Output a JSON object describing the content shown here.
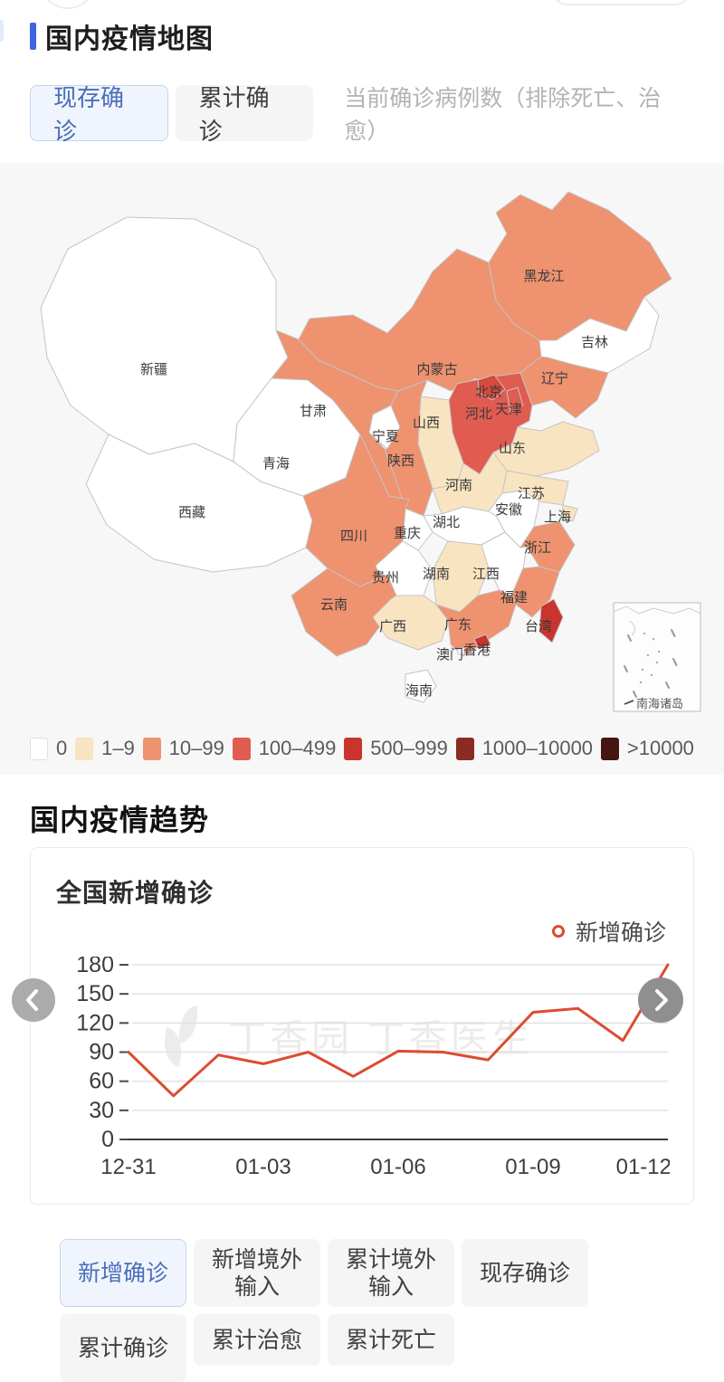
{
  "page": {
    "map_section": {
      "title": "国内疫情地图",
      "tabs": [
        {
          "label": "现存确诊",
          "selected": true
        },
        {
          "label": "累计确诊",
          "selected": false
        }
      ],
      "description": "当前确诊病例数（排除死亡、治愈）",
      "legend": [
        {
          "label": "0",
          "color": "#ffffff"
        },
        {
          "label": "1–9",
          "color": "#f9e4c1"
        },
        {
          "label": "10–99",
          "color": "#ee9270"
        },
        {
          "label": "100–499",
          "color": "#e05c50"
        },
        {
          "label": "500–999",
          "color": "#c9342c"
        },
        {
          "label": "1000–10000",
          "color": "#8c2a24"
        },
        {
          "label": ">10000",
          "color": "#441612"
        }
      ],
      "inset_label": "南海诸岛",
      "provinces": [
        {
          "id": "xinjiang",
          "name": "新疆",
          "level": "0"
        },
        {
          "id": "xizang",
          "name": "西藏",
          "level": "0"
        },
        {
          "id": "qinghai",
          "name": "青海",
          "level": "0"
        },
        {
          "id": "gansu",
          "name": "甘肃",
          "level": "10–99"
        },
        {
          "id": "neimenggu",
          "name": "内蒙古",
          "level": "10–99"
        },
        {
          "id": "heilongjiang",
          "name": "黑龙江",
          "level": "10–99"
        },
        {
          "id": "jilin",
          "name": "吉林",
          "level": "0"
        },
        {
          "id": "liaoning",
          "name": "辽宁",
          "level": "10–99"
        },
        {
          "id": "hebei",
          "name": "河北",
          "level": "100–499"
        },
        {
          "id": "beijing",
          "name": "北京",
          "level": "100–499",
          "color": "#d6493f"
        },
        {
          "id": "tianjin",
          "name": "天津",
          "level": "100–499"
        },
        {
          "id": "ningxia",
          "name": "宁夏",
          "level": "0"
        },
        {
          "id": "shanxi",
          "name": "山西",
          "level": "1–9"
        },
        {
          "id": "shandong",
          "name": "山东",
          "level": "1–9"
        },
        {
          "id": "shaanxi",
          "name": "陕西",
          "level": "10–99"
        },
        {
          "id": "henan",
          "name": "河南",
          "level": "1–9"
        },
        {
          "id": "jiangsu",
          "name": "江苏",
          "level": "1–9"
        },
        {
          "id": "anhui",
          "name": "安徽",
          "level": "0"
        },
        {
          "id": "shanghai",
          "name": "上海",
          "level": "1–9"
        },
        {
          "id": "hubei",
          "name": "湖北",
          "level": "0"
        },
        {
          "id": "chongqing",
          "name": "重庆",
          "level": "0"
        },
        {
          "id": "sichuan",
          "name": "四川",
          "level": "10–99"
        },
        {
          "id": "zhejiang",
          "name": "浙江",
          "level": "10–99"
        },
        {
          "id": "guizhou",
          "name": "贵州",
          "level": "0"
        },
        {
          "id": "hunan",
          "name": "湖南",
          "level": "1–9"
        },
        {
          "id": "jiangxi",
          "name": "江西",
          "level": "0"
        },
        {
          "id": "fujian",
          "name": "福建",
          "level": "10–99"
        },
        {
          "id": "yunnan",
          "name": "云南",
          "level": "10–99"
        },
        {
          "id": "guangxi",
          "name": "广西",
          "level": "1–9"
        },
        {
          "id": "guangdong",
          "name": "广东",
          "level": "10–99"
        },
        {
          "id": "aomen",
          "name": "澳门",
          "level": "0"
        },
        {
          "id": "xianggang",
          "name": "香港",
          "level": "500–999"
        },
        {
          "id": "taiwan",
          "name": "台湾",
          "level": "500–999"
        },
        {
          "id": "hainan",
          "name": "海南",
          "level": "0"
        }
      ]
    },
    "trend_section": {
      "title": "国内疫情趋势",
      "tabs": [
        {
          "label": "新增确诊",
          "selected": true
        },
        {
          "label": "新增境外\n输入",
          "selected": false
        },
        {
          "label": "累计境外\n输入",
          "selected": false
        },
        {
          "label": "现存确诊",
          "selected": false
        },
        {
          "label": "累计确诊",
          "selected": false
        },
        {
          "label": "累计治愈",
          "selected": false
        },
        {
          "label": "累计死亡",
          "selected": false
        }
      ],
      "watermark": "丁香园  丁香医生"
    }
  },
  "chart_data": {
    "type": "line",
    "title": "全国新增确诊",
    "legend": "新增确诊",
    "x": [
      "12-31",
      "01-01",
      "01-02",
      "01-03",
      "01-04",
      "01-05",
      "01-06",
      "01-07",
      "01-08",
      "01-09",
      "01-10",
      "01-11",
      "01-12"
    ],
    "values": [
      90,
      45,
      87,
      78,
      90,
      65,
      91,
      90,
      82,
      131,
      135,
      102,
      180
    ],
    "x_tick_labels": [
      "12-31",
      "01-03",
      "01-06",
      "01-09",
      "01-12"
    ],
    "y_ticks": [
      0,
      30,
      60,
      90,
      120,
      150,
      180
    ],
    "ylim": [
      0,
      180
    ],
    "line_color": "#dd4b32",
    "grid": true,
    "legend_position": "top-right"
  }
}
